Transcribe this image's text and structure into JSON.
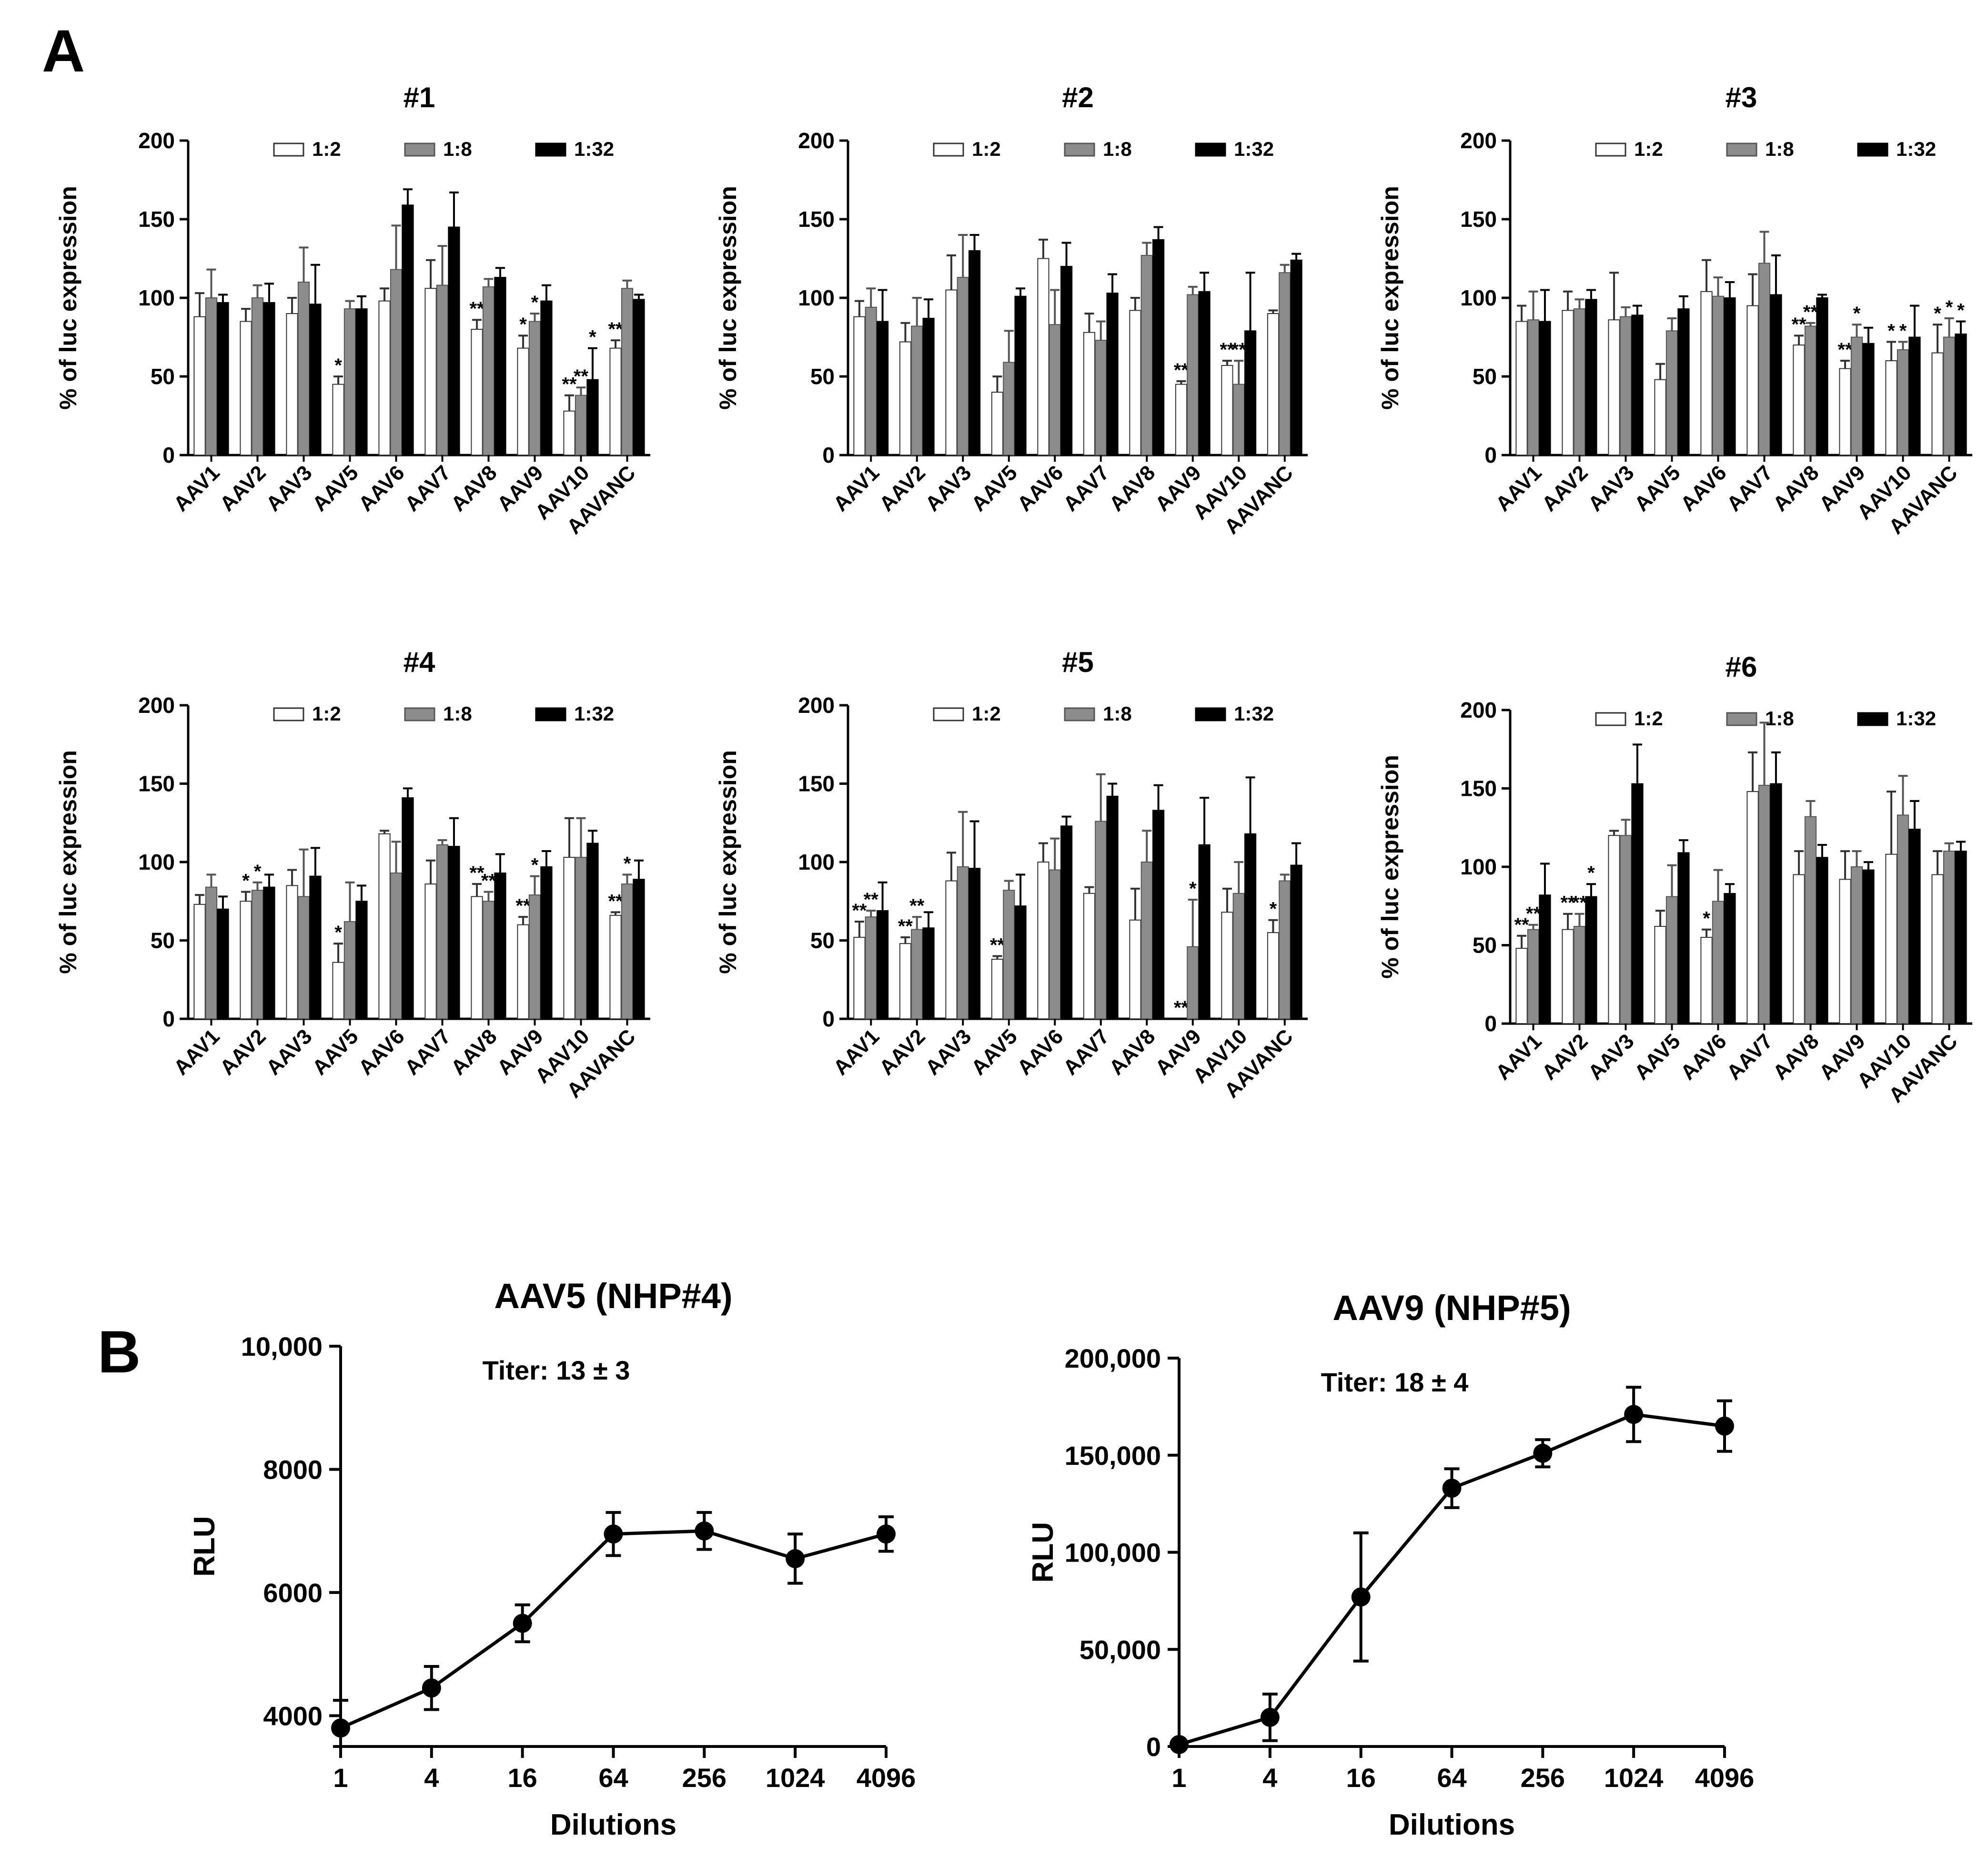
{
  "panel_a_label": "A",
  "panel_b_label": "B",
  "colors": {
    "s12": "#ffffff",
    "s18": "#8c8c8c",
    "s132": "#000000",
    "ink": "#000000"
  },
  "chart_data": [
    {
      "id": "p1",
      "type": "bar",
      "title": "#1",
      "ylabel": "% of luc expression",
      "xlabel": "",
      "ylim": [
        0,
        200
      ],
      "yticks": [
        0,
        50,
        100,
        150,
        200
      ],
      "categories": [
        "AAV1",
        "AAV2",
        "AAV3",
        "AAV5",
        "AAV6",
        "AAV7",
        "AAV8",
        "AAV9",
        "AAV10",
        "AAVANC"
      ],
      "series": [
        {
          "name": "1:2",
          "values": [
            88,
            85,
            90,
            45,
            98,
            106,
            80,
            68,
            28,
            68
          ],
          "errors": [
            15,
            8,
            10,
            5,
            8,
            18,
            6,
            8,
            10,
            5
          ],
          "stars": [
            "",
            "",
            "",
            "*",
            "",
            "",
            "**",
            "*",
            "**",
            "**"
          ]
        },
        {
          "name": "1:8",
          "values": [
            100,
            100,
            110,
            93,
            118,
            108,
            107,
            85,
            38,
            106
          ],
          "errors": [
            18,
            8,
            22,
            5,
            28,
            25,
            5,
            5,
            5,
            5
          ],
          "stars": [
            "",
            "",
            "",
            "",
            "",
            "",
            "",
            "*",
            "**",
            ""
          ]
        },
        {
          "name": "1:32",
          "values": [
            97,
            97,
            96,
            93,
            159,
            145,
            113,
            98,
            48,
            99
          ],
          "errors": [
            5,
            12,
            25,
            8,
            10,
            22,
            6,
            10,
            20,
            3
          ],
          "stars": [
            "",
            "",
            "",
            "",
            "",
            "",
            "",
            "",
            "*",
            ""
          ]
        }
      ]
    },
    {
      "id": "p2",
      "type": "bar",
      "title": "#2",
      "ylabel": "% of luc expression",
      "xlabel": "",
      "ylim": [
        0,
        200
      ],
      "yticks": [
        0,
        50,
        100,
        150,
        200
      ],
      "categories": [
        "AAV1",
        "AAV2",
        "AAV3",
        "AAV5",
        "AAV6",
        "AAV7",
        "AAV8",
        "AAV9",
        "AAV10",
        "AAVANC"
      ],
      "series": [
        {
          "name": "1:2",
          "values": [
            88,
            72,
            105,
            40,
            125,
            78,
            92,
            45,
            57,
            90
          ],
          "errors": [
            10,
            12,
            22,
            10,
            12,
            12,
            8,
            2,
            3,
            2
          ],
          "stars": [
            "",
            "",
            "",
            "",
            "",
            "",
            "",
            "**",
            "**",
            ""
          ]
        },
        {
          "name": "1:8",
          "values": [
            94,
            82,
            113,
            59,
            83,
            73,
            127,
            102,
            45,
            116
          ],
          "errors": [
            12,
            18,
            27,
            20,
            22,
            12,
            8,
            5,
            15,
            5
          ],
          "stars": [
            "",
            "",
            "",
            "",
            "",
            "",
            "",
            "",
            "**",
            ""
          ]
        },
        {
          "name": "1:32",
          "values": [
            85,
            87,
            130,
            101,
            120,
            103,
            137,
            104,
            79,
            124
          ],
          "errors": [
            20,
            12,
            10,
            5,
            15,
            12,
            8,
            12,
            37,
            4
          ],
          "stars": [
            "",
            "",
            "",
            "",
            "",
            "",
            "",
            "",
            "",
            ""
          ]
        }
      ]
    },
    {
      "id": "p3",
      "type": "bar",
      "title": "#3",
      "ylabel": "% of luc expression",
      "xlabel": "",
      "ylim": [
        0,
        200
      ],
      "yticks": [
        0,
        50,
        100,
        150,
        200
      ],
      "categories": [
        "AAV1",
        "AAV2",
        "AAV3",
        "AAV5",
        "AAV6",
        "AAV7",
        "AAV8",
        "AAV9",
        "AAV10",
        "AAVANC"
      ],
      "series": [
        {
          "name": "1:2",
          "values": [
            85,
            92,
            86,
            48,
            104,
            95,
            70,
            55,
            60,
            65
          ],
          "errors": [
            10,
            12,
            30,
            10,
            20,
            20,
            6,
            5,
            12,
            18
          ],
          "stars": [
            "",
            "",
            "",
            "",
            "",
            "",
            "**",
            "**",
            "*",
            "*"
          ]
        },
        {
          "name": "1:8",
          "values": [
            86,
            93,
            88,
            79,
            101,
            122,
            82,
            75,
            67,
            75
          ],
          "errors": [
            18,
            6,
            6,
            8,
            12,
            20,
            2,
            8,
            5,
            12
          ],
          "stars": [
            "",
            "",
            "",
            "",
            "",
            "",
            "**",
            "*",
            "*",
            "*"
          ]
        },
        {
          "name": "1:32",
          "values": [
            85,
            99,
            89,
            93,
            100,
            102,
            100,
            71,
            75,
            77
          ],
          "errors": [
            20,
            6,
            6,
            8,
            10,
            25,
            2,
            10,
            20,
            8
          ],
          "stars": [
            "",
            "",
            "",
            "",
            "",
            "",
            "",
            "",
            "",
            "*"
          ]
        }
      ]
    },
    {
      "id": "p4",
      "type": "bar",
      "title": "#4",
      "ylabel": "% of luc expression",
      "xlabel": "",
      "ylim": [
        0,
        200
      ],
      "yticks": [
        0,
        50,
        100,
        150,
        200
      ],
      "categories": [
        "AAV1",
        "AAV2",
        "AAV3",
        "AAV5",
        "AAV6",
        "AAV7",
        "AAV8",
        "AAV9",
        "AAV10",
        "AAVANC"
      ],
      "series": [
        {
          "name": "1:2",
          "values": [
            73,
            75,
            85,
            36,
            118,
            86,
            78,
            60,
            103,
            66
          ],
          "errors": [
            6,
            6,
            10,
            12,
            2,
            15,
            8,
            5,
            25,
            2
          ],
          "stars": [
            "",
            "*",
            "",
            "*",
            "",
            "",
            "**",
            "**",
            "",
            "**"
          ]
        },
        {
          "name": "1:8",
          "values": [
            84,
            82,
            78,
            62,
            93,
            111,
            75,
            79,
            103,
            86
          ],
          "errors": [
            8,
            5,
            30,
            25,
            20,
            3,
            6,
            12,
            25,
            6
          ],
          "stars": [
            "",
            "*",
            "",
            "",
            "",
            "",
            "**",
            "*",
            "",
            "*"
          ]
        },
        {
          "name": "1:32",
          "values": [
            70,
            84,
            91,
            75,
            141,
            110,
            93,
            97,
            112,
            89
          ],
          "errors": [
            8,
            8,
            18,
            10,
            6,
            18,
            12,
            10,
            8,
            12
          ],
          "stars": [
            "",
            "",
            "",
            "",
            "",
            "",
            "",
            "",
            "",
            ""
          ]
        }
      ]
    },
    {
      "id": "p5",
      "type": "bar",
      "title": "#5",
      "ylabel": "% of luc expression",
      "xlabel": "",
      "ylim": [
        0,
        200
      ],
      "yticks": [
        0,
        50,
        100,
        150,
        200
      ],
      "categories": [
        "AAV1",
        "AAV2",
        "AAV3",
        "AAV5",
        "AAV6",
        "AAV7",
        "AAV8",
        "AAV9",
        "AAV10",
        "AAVANC"
      ],
      "series": [
        {
          "name": "1:2",
          "values": [
            52,
            48,
            88,
            38,
            100,
            80,
            63,
            0,
            68,
            55
          ],
          "errors": [
            10,
            4,
            18,
            2,
            12,
            4,
            20,
            0,
            15,
            8
          ],
          "stars": [
            "**",
            "**",
            "",
            "**",
            "",
            "",
            "",
            "**",
            "",
            "*"
          ]
        },
        {
          "name": "1:8",
          "values": [
            65,
            57,
            97,
            82,
            95,
            126,
            100,
            46,
            80,
            88
          ],
          "errors": [
            4,
            8,
            35,
            6,
            20,
            30,
            20,
            30,
            20,
            4
          ],
          "stars": [
            "**",
            "**",
            "",
            "",
            "",
            "",
            "",
            "*",
            "",
            ""
          ]
        },
        {
          "name": "1:32",
          "values": [
            69,
            58,
            96,
            72,
            123,
            142,
            133,
            111,
            118,
            98
          ],
          "errors": [
            18,
            10,
            30,
            20,
            6,
            8,
            16,
            30,
            36,
            14
          ],
          "stars": [
            "",
            "",
            "",
            "",
            "",
            "",
            "",
            "",
            "",
            ""
          ]
        }
      ]
    },
    {
      "id": "p6",
      "type": "bar",
      "title": "#6",
      "ylabel": "% of luc expression",
      "xlabel": "",
      "ylim": [
        0,
        200
      ],
      "yticks": [
        0,
        50,
        100,
        150,
        200
      ],
      "categories": [
        "AAV1",
        "AAV2",
        "AAV3",
        "AAV5",
        "AAV6",
        "AAV7",
        "AAV8",
        "AAV9",
        "AAV10",
        "AAVANC"
      ],
      "series": [
        {
          "name": "1:2",
          "values": [
            48,
            60,
            120,
            62,
            55,
            148,
            95,
            92,
            108,
            95
          ],
          "errors": [
            8,
            10,
            3,
            10,
            5,
            25,
            15,
            18,
            40,
            15
          ],
          "stars": [
            "**",
            "**",
            "",
            "",
            "*",
            "",
            "",
            "",
            "",
            ""
          ]
        },
        {
          "name": "1:8",
          "values": [
            60,
            62,
            120,
            81,
            78,
            152,
            132,
            100,
            133,
            110
          ],
          "errors": [
            3,
            8,
            10,
            20,
            20,
            40,
            10,
            10,
            25,
            5
          ],
          "stars": [
            "**",
            "**",
            "",
            "",
            "",
            "",
            "",
            "",
            "",
            ""
          ]
        },
        {
          "name": "1:32",
          "values": [
            82,
            81,
            153,
            109,
            83,
            153,
            106,
            98,
            124,
            110
          ],
          "errors": [
            20,
            8,
            25,
            8,
            6,
            20,
            8,
            5,
            18,
            6
          ],
          "stars": [
            "",
            "*",
            "",
            "",
            "",
            "",
            "",
            "",
            "",
            ""
          ]
        }
      ]
    },
    {
      "id": "b1",
      "type": "line",
      "title": "AAV5 (NHP#4)",
      "annotation": "Titer: 13 ± 3",
      "xlabel": "Dilutions",
      "ylabel": "RLU",
      "x": [
        "1",
        "4",
        "16",
        "64",
        "256",
        "1024",
        "4096"
      ],
      "y": [
        3800,
        4450,
        5500,
        6950,
        7000,
        6550,
        6950
      ],
      "errors": [
        450,
        350,
        300,
        350,
        300,
        400,
        280
      ],
      "ylim": [
        3500,
        10000
      ],
      "yticks": [
        4000,
        6000,
        8000,
        10000
      ],
      "yticklabels": [
        "4000",
        "6000",
        "8000",
        "10,000"
      ]
    },
    {
      "id": "b2",
      "type": "line",
      "title": "AAV9 (NHP#5)",
      "annotation": "Titer: 18 ± 4",
      "xlabel": "Dilutions",
      "ylabel": "RLU",
      "x": [
        "1",
        "4",
        "16",
        "64",
        "256",
        "1024",
        "4096"
      ],
      "y": [
        1000,
        15000,
        77000,
        133000,
        151000,
        171000,
        165000
      ],
      "errors": [
        1000,
        12000,
        33000,
        10000,
        7000,
        14000,
        13000
      ],
      "ylim": [
        0,
        200000
      ],
      "yticks": [
        0,
        50000,
        100000,
        150000,
        200000
      ],
      "yticklabels": [
        "0",
        "50,000",
        "100,000",
        "150,000",
        "200,000"
      ]
    }
  ]
}
